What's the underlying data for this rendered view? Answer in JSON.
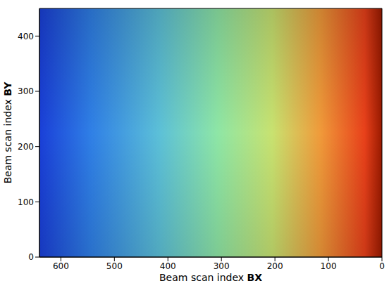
{
  "chart_data": {
    "type": "image",
    "x_label": "Beam scan index BX",
    "y_label": "Beam scan index BY",
    "xlim": [
      0,
      640
    ],
    "xticks": [
      0,
      100,
      200,
      300,
      400,
      500,
      600
    ],
    "ylim": [
      0,
      450
    ],
    "yticks": [
      0,
      100,
      200,
      300,
      400
    ],
    "x_reversed": true,
    "grid": false
  }
}
